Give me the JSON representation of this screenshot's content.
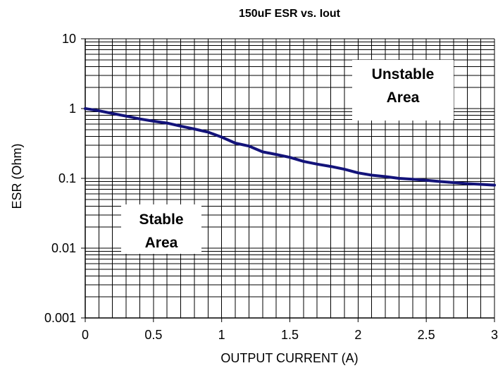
{
  "chart_data": {
    "type": "line",
    "title": "150uF ESR vs. Iout",
    "xlabel": "OUTPUT CURRENT (A)",
    "ylabel": "ESR (Ohm)",
    "xlim": [
      0,
      3
    ],
    "ylim": [
      0.001,
      10
    ],
    "yscale": "log",
    "grid": true,
    "x_ticks": [
      "0",
      "0.5",
      "1",
      "1.5",
      "2",
      "2.5",
      "3"
    ],
    "y_ticks": [
      "0.001",
      "0.01",
      "0.1",
      "1",
      "10"
    ],
    "series": [
      {
        "x": [
          0,
          0.1,
          0.2,
          0.3,
          0.4,
          0.5,
          0.6,
          0.7,
          0.8,
          0.9,
          1.0,
          1.1,
          1.2,
          1.3,
          1.4,
          1.5,
          1.6,
          1.7,
          1.8,
          1.9,
          2.0,
          2.1,
          2.2,
          2.3,
          2.4,
          2.5,
          2.6,
          2.7,
          2.8,
          2.9,
          3.0
        ],
        "y": [
          1.0,
          0.93,
          0.85,
          0.78,
          0.71,
          0.66,
          0.62,
          0.56,
          0.51,
          0.46,
          0.39,
          0.32,
          0.29,
          0.24,
          0.22,
          0.2,
          0.175,
          0.16,
          0.148,
          0.135,
          0.12,
          0.111,
          0.106,
          0.1,
          0.097,
          0.094,
          0.09,
          0.087,
          0.084,
          0.082,
          0.08
        ],
        "color": "#13137a"
      }
    ],
    "annotations": [
      {
        "lines": [
          "Unstable",
          "Area"
        ]
      },
      {
        "lines": [
          "Stable",
          "Area"
        ]
      }
    ]
  }
}
